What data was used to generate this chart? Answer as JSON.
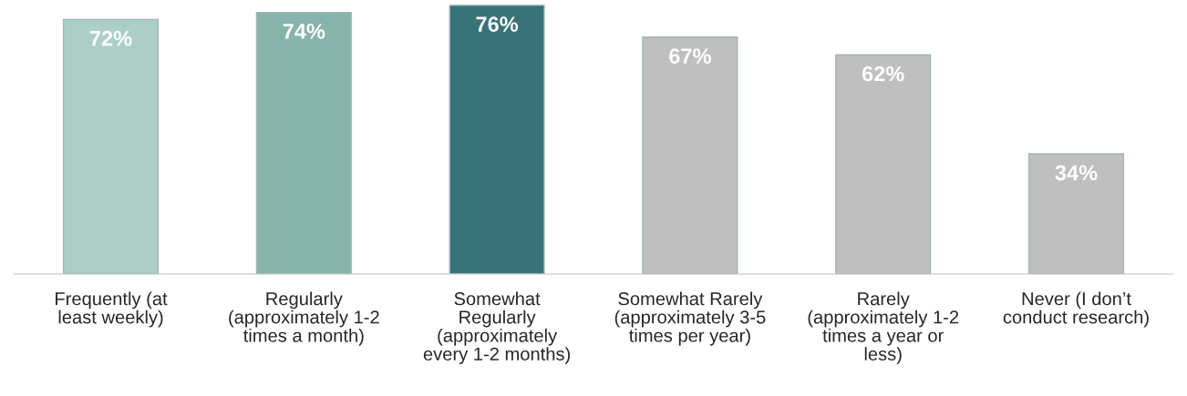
{
  "chart_data": {
    "type": "bar",
    "categories": [
      "Frequently (at\nleast weekly)",
      "Regularly\n(approximately 1-2\ntimes a month)",
      "Somewhat\nRegularly\n(approximately\nevery 1-2 months)",
      "Somewhat Rarely\n(approximately 3-5\ntimes per year)",
      "Rarely\n(approximately 1-2\ntimes a year or\nless)",
      "Never (I don’t\nconduct research)"
    ],
    "values": [
      72,
      74,
      76,
      67,
      62,
      34
    ],
    "colors": [
      "#abcfc7",
      "#86b4aa",
      "#377379",
      "#bfbfbf",
      "#bfbfbf",
      "#bfbfbf"
    ],
    "value_labels": [
      "72%",
      "74%",
      "76%",
      "67%",
      "62%",
      "34%"
    ],
    "grid": false,
    "legend": false
  }
}
